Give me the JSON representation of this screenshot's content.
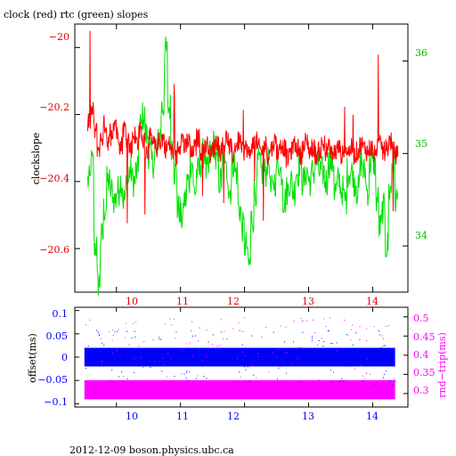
{
  "colors": {
    "clock": "#ff0000",
    "rtc": "#00e000",
    "offset": "#0000ff",
    "round_trip": "#ff00ff"
  },
  "footer_text": "2012-12-09  boson.physics.ubc.ca",
  "chart_data": [
    {
      "type": "line",
      "title": "clock (red) rtc (green) slopes",
      "ylabel": "clockslope",
      "xlim": [
        9.35,
        14.55
      ],
      "ylim": [
        -20.73,
        -19.93
      ],
      "y2lim": [
        33.5,
        36.4
      ],
      "x_ticks": [
        10,
        11,
        12,
        13,
        14
      ],
      "y_ticks": [
        -20,
        -20.2,
        -20.4,
        -20.6
      ],
      "y_tick_labels": [
        "−20",
        "−20.2",
        "−20.4",
        "−20.6"
      ],
      "y2_ticks": [
        34,
        35,
        36
      ],
      "grid": false,
      "series": [
        {
          "axis": "left",
          "color": "#ff0000",
          "x": [
            9.55,
            9.6,
            9.65,
            9.7,
            9.75,
            9.8,
            9.85,
            9.9,
            9.95,
            10.0,
            10.05,
            10.1,
            10.15,
            10.2,
            10.25,
            10.3,
            10.35,
            10.4,
            10.45,
            10.5,
            10.55,
            10.6,
            10.65,
            10.7,
            10.75,
            10.8,
            10.85,
            10.9,
            10.95,
            11.0,
            11.05,
            11.1,
            11.15,
            11.2,
            11.25,
            11.3,
            11.35,
            11.4,
            11.45,
            11.5,
            11.55,
            11.6,
            11.65,
            11.7,
            11.75,
            11.8,
            11.85,
            11.9,
            11.95,
            12.0,
            12.05,
            12.1,
            12.15,
            12.2,
            12.25,
            12.3,
            12.35,
            12.4,
            12.45,
            12.5,
            12.55,
            12.6,
            12.65,
            12.7,
            12.75,
            12.8,
            12.85,
            12.9,
            12.95,
            13.0,
            13.05,
            13.1,
            13.15,
            13.2,
            13.25,
            13.3,
            13.35,
            13.4,
            13.45,
            13.5,
            13.55,
            13.6,
            13.65,
            13.7,
            13.75,
            13.8,
            13.85,
            13.9,
            13.95,
            14.0,
            14.05,
            14.1,
            14.15,
            14.2,
            14.25,
            14.3,
            14.35
          ],
          "y": [
            -20.22,
            -20.19,
            -20.25,
            -20.3,
            -20.27,
            -20.23,
            -20.28,
            -20.25,
            -20.22,
            -20.26,
            -20.29,
            -20.24,
            -20.27,
            -20.3,
            -20.26,
            -20.28,
            -20.25,
            -20.28,
            -20.31,
            -20.27,
            -20.29,
            -20.3,
            -20.28,
            -20.27,
            -20.3,
            -20.29,
            -20.31,
            -20.33,
            -20.29,
            -20.27,
            -20.3,
            -20.28,
            -20.32,
            -20.3,
            -20.27,
            -20.31,
            -20.3,
            -20.29,
            -20.32,
            -20.3,
            -20.28,
            -20.31,
            -20.29,
            -20.27,
            -20.3,
            -20.32,
            -20.29,
            -20.28,
            -20.31,
            -20.3,
            -20.32,
            -20.29,
            -20.28,
            -20.3,
            -20.31,
            -20.29,
            -20.32,
            -20.3,
            -20.28,
            -20.31,
            -20.29,
            -20.3,
            -20.33,
            -20.31,
            -20.29,
            -20.3,
            -20.32,
            -20.3,
            -20.28,
            -20.31,
            -20.3,
            -20.32,
            -20.31,
            -20.29,
            -20.31,
            -20.3,
            -20.32,
            -20.31,
            -20.3,
            -20.32,
            -20.3,
            -20.31,
            -20.3,
            -20.32,
            -20.31,
            -20.29,
            -20.3,
            -20.31,
            -20.3,
            -20.32,
            -20.3,
            -20.29,
            -20.31,
            -20.3,
            -20.28,
            -20.31,
            -20.32
          ]
        },
        {
          "axis": "right",
          "color": "#00e000",
          "x": [
            9.55,
            9.6,
            9.65,
            9.7,
            9.75,
            9.8,
            9.85,
            9.9,
            9.95,
            10.0,
            10.05,
            10.1,
            10.15,
            10.2,
            10.25,
            10.3,
            10.35,
            10.4,
            10.45,
            10.5,
            10.55,
            10.6,
            10.65,
            10.7,
            10.75,
            10.8,
            10.85,
            10.9,
            10.95,
            11.0,
            11.05,
            11.1,
            11.15,
            11.2,
            11.25,
            11.3,
            11.35,
            11.4,
            11.45,
            11.5,
            11.55,
            11.6,
            11.65,
            11.7,
            11.75,
            11.8,
            11.85,
            11.9,
            11.95,
            12.0,
            12.05,
            12.1,
            12.15,
            12.2,
            12.25,
            12.3,
            12.35,
            12.4,
            12.45,
            12.5,
            12.55,
            12.6,
            12.65,
            12.7,
            12.75,
            12.8,
            12.85,
            12.9,
            12.95,
            13.0,
            13.05,
            13.1,
            13.15,
            13.2,
            13.25,
            13.3,
            13.35,
            13.4,
            13.45,
            13.5,
            13.55,
            13.6,
            13.65,
            13.7,
            13.75,
            13.8,
            13.85,
            13.9,
            13.95,
            14.0,
            14.05,
            14.1,
            14.15,
            14.2,
            14.25,
            14.3,
            14.35
          ],
          "y": [
            34.7,
            34.9,
            34.0,
            33.6,
            34.1,
            34.4,
            34.7,
            34.6,
            34.5,
            34.6,
            34.7,
            34.5,
            34.7,
            34.8,
            34.7,
            34.8,
            35.3,
            35.4,
            35.2,
            35.0,
            34.9,
            35.0,
            35.2,
            35.5,
            36.1,
            35.5,
            35.1,
            34.8,
            34.4,
            34.3,
            34.5,
            34.7,
            34.9,
            34.6,
            34.8,
            34.9,
            35.0,
            34.8,
            35.0,
            35.1,
            34.9,
            34.7,
            35.0,
            34.8,
            34.6,
            34.9,
            34.8,
            34.4,
            34.2,
            34.0,
            33.8,
            34.3,
            34.6,
            34.9,
            34.8,
            34.8,
            34.9,
            34.6,
            34.7,
            34.9,
            34.8,
            34.5,
            34.6,
            34.7,
            34.6,
            34.8,
            34.9,
            34.7,
            34.8,
            34.7,
            34.8,
            34.9,
            34.8,
            34.8,
            34.7,
            34.9,
            34.9,
            34.6,
            34.7,
            34.6,
            34.5,
            34.8,
            34.8,
            34.7,
            34.6,
            34.9,
            34.8,
            34.6,
            34.9,
            34.9,
            34.5,
            34.2,
            34.4,
            34.0,
            34.6,
            34.9,
            34.5
          ]
        }
      ]
    },
    {
      "type": "scatter",
      "ylabel": "offset(ms)",
      "y2label": "rnd−trip(ms)",
      "xlim": [
        9.35,
        14.55
      ],
      "ylim": [
        -0.107,
        0.107
      ],
      "y2lim": [
        0.265,
        0.525
      ],
      "x_ticks": [
        10,
        11,
        12,
        13,
        14
      ],
      "y_ticks": [
        0.1,
        0.05,
        0,
        -0.05,
        -0.1
      ],
      "y_tick_labels": [
        "0.1",
        "0.05",
        "0",
        "−0.05",
        "−0.1"
      ],
      "y2_ticks": [
        0.5,
        0.45,
        0.4,
        0.35,
        0.3
      ],
      "grid": false,
      "series": [
        {
          "axis": "left",
          "color": "#0000ff",
          "band_center": 0.0,
          "band_halfwidth": 0.02,
          "x_range": [
            9.5,
            14.35
          ]
        },
        {
          "axis": "right",
          "color": "#ff00ff",
          "band_center": 0.31,
          "band_halfwidth": 0.025,
          "x_range": [
            9.5,
            14.35
          ]
        }
      ]
    }
  ]
}
